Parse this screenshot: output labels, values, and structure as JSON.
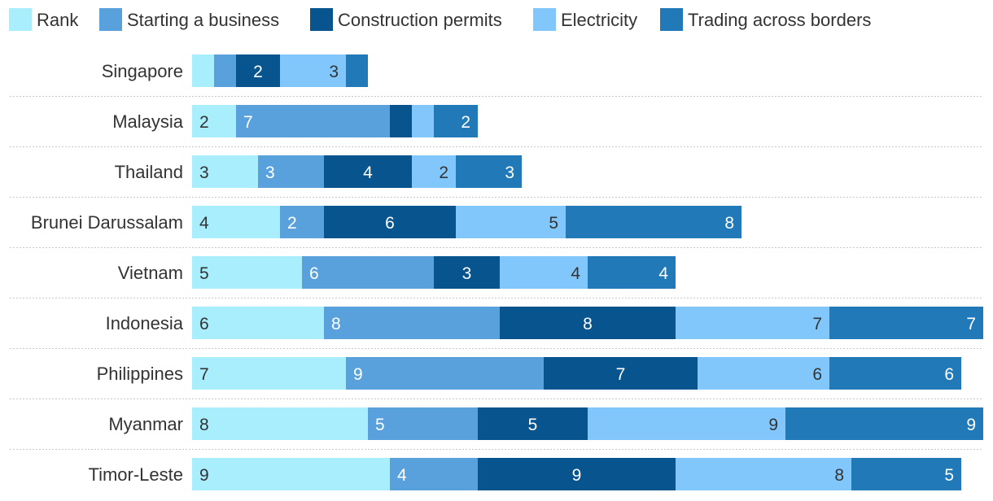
{
  "chart_data": {
    "type": "bar",
    "orientation": "horizontal",
    "stacked": true,
    "legend_position": "top-left",
    "categories": [
      "Singapore",
      "Malaysia",
      "Thailand",
      "Brunei Darussalam",
      "Vietnam",
      "Indonesia",
      "Philippines",
      "Myanmar",
      "Timor-Leste"
    ],
    "series": [
      {
        "name": "Rank",
        "color": "#a9eefd",
        "label_color": "#333333",
        "label_align": "start",
        "values": [
          1,
          2,
          3,
          4,
          5,
          6,
          7,
          8,
          9
        ]
      },
      {
        "name": "Starting a business",
        "color": "#59a1dd",
        "label_color": "#ffffff",
        "label_align": "start",
        "values": [
          1,
          7,
          3,
          2,
          6,
          8,
          9,
          5,
          4
        ]
      },
      {
        "name": "Construction permits",
        "color": "#07548e",
        "label_color": "#ffffff",
        "label_align": "middle",
        "values": [
          2,
          1,
          4,
          6,
          3,
          8,
          7,
          5,
          9
        ]
      },
      {
        "name": "Electricity",
        "color": "#82c7fc",
        "label_color": "#333333",
        "label_align": "end",
        "values": [
          3,
          1,
          2,
          5,
          4,
          7,
          6,
          9,
          8
        ]
      },
      {
        "name": "Trading across borders",
        "color": "#2279b7",
        "label_color": "#ffffff",
        "label_align": "end",
        "values": [
          1,
          2,
          3,
          8,
          4,
          7,
          6,
          9,
          5
        ]
      }
    ],
    "labels": [
      [
        "",
        "",
        "2",
        "3",
        ""
      ],
      [
        "2",
        "7",
        "",
        "",
        "2"
      ],
      [
        "3",
        "3",
        "4",
        "2",
        "3"
      ],
      [
        "4",
        "2",
        "6",
        "5",
        "8"
      ],
      [
        "5",
        "6",
        "3",
        "4",
        "4"
      ],
      [
        "6",
        "8",
        "8",
        "7",
        "7"
      ],
      [
        "7",
        "9",
        "7",
        "6",
        "6"
      ],
      [
        "8",
        "5",
        "5",
        "9",
        "9"
      ],
      [
        "9",
        "4",
        "9",
        "8",
        "5"
      ]
    ],
    "xlim": [
      0,
      36
    ],
    "grid": false,
    "title": "",
    "xlabel": "",
    "ylabel": ""
  }
}
